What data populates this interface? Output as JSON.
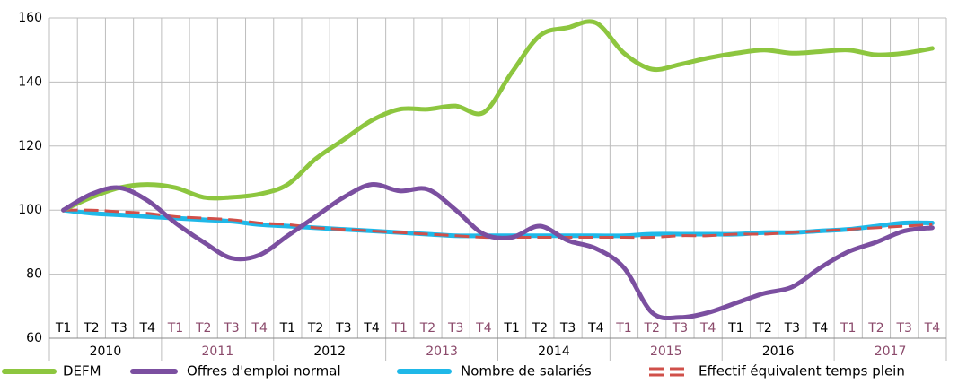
{
  "chart_data": {
    "type": "line",
    "categories": [
      "T1",
      "T2",
      "T3",
      "T4",
      "T1",
      "T2",
      "T3",
      "T4",
      "T1",
      "T2",
      "T3",
      "T4",
      "T1",
      "T2",
      "T3",
      "T4",
      "T1",
      "T2",
      "T3",
      "T4",
      "T1",
      "T2",
      "T3",
      "T4",
      "T1",
      "T2",
      "T3",
      "T4",
      "T1",
      "T2",
      "T3",
      "T4"
    ],
    "years": [
      "2010",
      "2011",
      "2012",
      "2013",
      "2014",
      "2015",
      "2016",
      "2017"
    ],
    "label_colors": [
      "#000000",
      "#8b4a6b"
    ],
    "ylim": [
      60,
      160
    ],
    "yticks": [
      60,
      80,
      100,
      120,
      140,
      160
    ],
    "grid": true,
    "series": [
      {
        "name": "DEFM",
        "color": "#8dc63f",
        "values": [
          100,
          104,
          107,
          108,
          107,
          104,
          104,
          105,
          108,
          116,
          122,
          128,
          131.5,
          131.5,
          132.5,
          130.5,
          143,
          154.5,
          157,
          158.5,
          149,
          144,
          145.5,
          147.5,
          149,
          150,
          149,
          149.5,
          150,
          148.5,
          149,
          150.5
        ]
      },
      {
        "name": "Offres d'emploi normal",
        "color": "#7b4fa0",
        "values": [
          100,
          105,
          107,
          103,
          96,
          90,
          85,
          86,
          92,
          98,
          104,
          108,
          106,
          106.5,
          100,
          92.5,
          91.5,
          95,
          90.5,
          88,
          82,
          68,
          66.5,
          68,
          71,
          74,
          76,
          82,
          87,
          90,
          93.5,
          94.5
        ]
      },
      {
        "name": "Nombre de salariés",
        "color": "#1fb8e8",
        "values": [
          100,
          99,
          98.5,
          98,
          97.5,
          97,
          96.5,
          95.5,
          95,
          94.5,
          94,
          93.5,
          93,
          92.5,
          92,
          92,
          92,
          92,
          92,
          92,
          92,
          92.5,
          92.5,
          92.5,
          92.5,
          93,
          93,
          93.5,
          94,
          95,
          96,
          96
        ]
      },
      {
        "name": "Effectif équivalent temps plein",
        "color": "#d0504a",
        "dash": true,
        "values": [
          100,
          100,
          99.5,
          99,
          98,
          97.5,
          97,
          96,
          95.5,
          94.5,
          94,
          93.5,
          93,
          92.5,
          92,
          91.5,
          91.5,
          91.5,
          91.5,
          91.5,
          91.5,
          91.5,
          92,
          92,
          92.5,
          92.5,
          93,
          93.5,
          94,
          94.5,
          95,
          95.5
        ]
      }
    ]
  }
}
